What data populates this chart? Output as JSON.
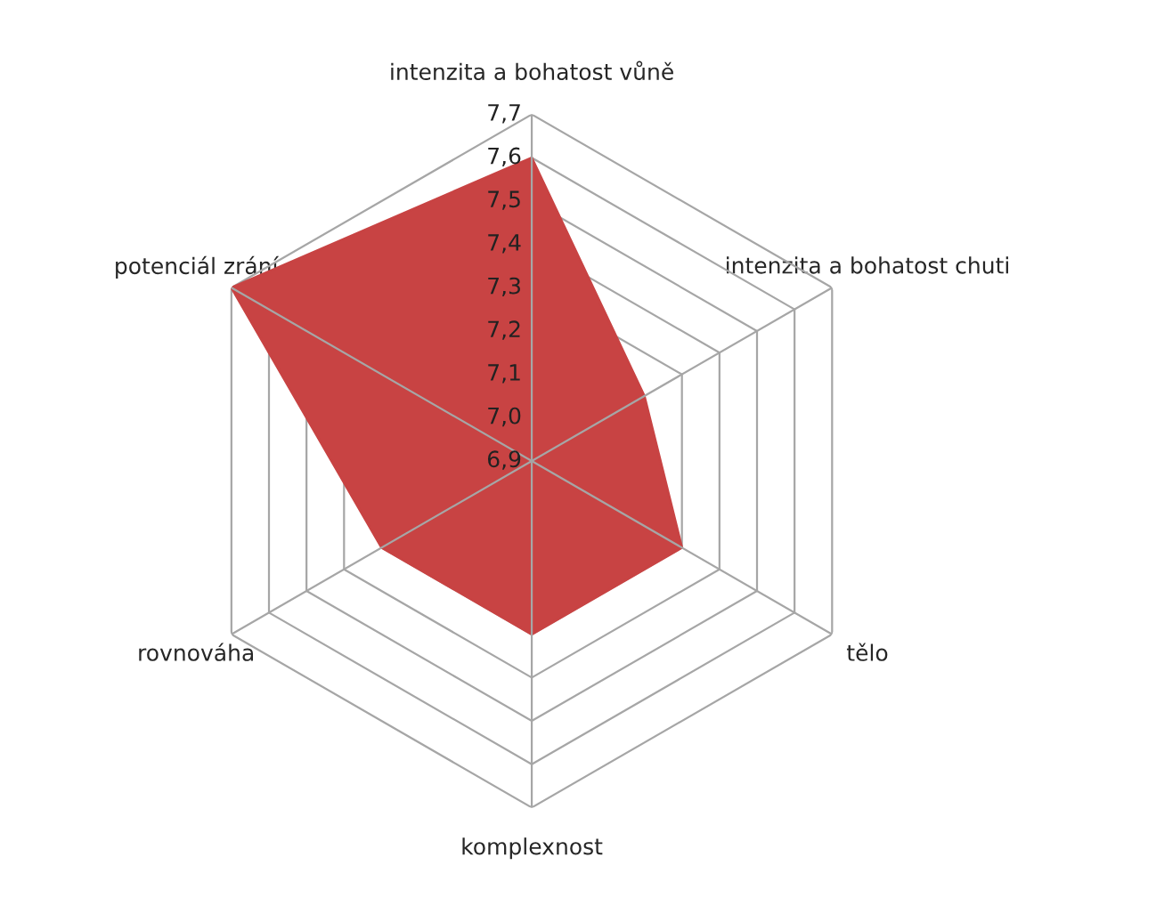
{
  "chart_data": {
    "type": "radar",
    "categories": [
      "intenzita a bohatost vůně",
      "intenzita a bohatost chuti",
      "tělo",
      "komplexnost",
      "rovnováha",
      "potenciál zrání"
    ],
    "series": [
      {
        "color": "#c84343",
        "values": [
          7.6,
          7.2,
          7.3,
          7.3,
          7.3,
          7.7
        ]
      }
    ],
    "ylim": [
      6.9,
      7.7
    ],
    "yticks": [
      {
        "value": 6.9,
        "label": "6,9"
      },
      {
        "value": 7.0,
        "label": "7,0"
      },
      {
        "value": 7.1,
        "label": "7,1"
      },
      {
        "value": 7.2,
        "label": "7,2"
      },
      {
        "value": 7.3,
        "label": "7,3"
      },
      {
        "value": 7.4,
        "label": "7,4"
      },
      {
        "value": 7.5,
        "label": "7,5"
      },
      {
        "value": 7.6,
        "label": "7,6"
      },
      {
        "value": 7.7,
        "label": "7,7"
      }
    ],
    "grid": true
  }
}
